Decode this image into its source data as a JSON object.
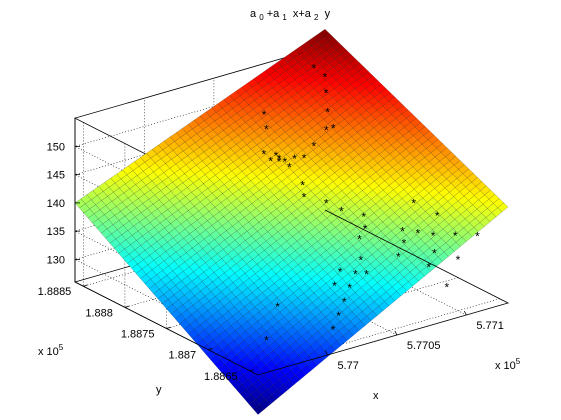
{
  "chart_data": {
    "type": "surface3d",
    "title_parts": [
      "a",
      "0",
      "+a",
      "1",
      " x+a",
      "2",
      " y"
    ],
    "xlabel": "x",
    "ylabel": "y",
    "x_exponent": {
      "base": "x 10",
      "power": "5"
    },
    "y_exponent": {
      "base": "x 10",
      "power": "5"
    },
    "xlim": [
      5.7695,
      5.7713
    ],
    "ylim": [
      1.8864,
      1.8886
    ],
    "zlim": [
      126,
      155
    ],
    "x_ticks": [
      5.77,
      5.7705,
      5.771
    ],
    "x_tick_labels": [
      "5.77",
      "5.7705",
      "5.771"
    ],
    "y_ticks": [
      1.8865,
      1.887,
      1.8875,
      1.888,
      1.8885
    ],
    "y_tick_labels": [
      "1.8865",
      "1.887",
      "1.8875",
      "1.888",
      "1.8885"
    ],
    "z_ticks": [
      130,
      135,
      140,
      145,
      150
    ],
    "z_tick_labels": [
      "130",
      "135",
      "140",
      "145",
      "150"
    ],
    "surface_corner_values": {
      "x_min_y_min": 119,
      "x_max_y_min": 143,
      "x_min_y_max": 140,
      "x_max_y_max": 158
    },
    "grid": true,
    "colormap": "jet",
    "marker": "*",
    "marker_color": "#000000",
    "scatter_points": [
      [
        5.77055,
        1.88808,
        152
      ],
      [
        5.77053,
        1.88802,
        150
      ],
      [
        5.7705,
        1.888,
        146
      ],
      [
        5.77052,
        1.88795,
        145
      ],
      [
        5.77055,
        1.8879,
        145
      ],
      [
        5.77058,
        1.88788,
        145
      ],
      [
        5.7706,
        1.88786,
        144
      ],
      [
        5.77054,
        1.88792,
        146
      ],
      [
        5.77058,
        1.88795,
        145
      ],
      [
        5.77065,
        1.88788,
        145
      ],
      [
        5.7707,
        1.88785,
        145
      ],
      [
        5.7708,
        1.8879,
        146
      ],
      [
        5.77095,
        1.888,
        147
      ],
      [
        5.77102,
        1.8881,
        149
      ],
      [
        5.77108,
        1.88822,
        151
      ],
      [
        5.77112,
        1.8883,
        153
      ],
      [
        5.7711,
        1.8884,
        154
      ],
      [
        5.771,
        1.888,
        147
      ],
      [
        5.7706,
        1.8877,
        142
      ],
      [
        5.77055,
        1.8876,
        141
      ],
      [
        5.77065,
        1.8875,
        140
      ],
      [
        5.7707,
        1.8874,
        139
      ],
      [
        5.7708,
        1.8873,
        138
      ],
      [
        5.77075,
        1.8872,
        137
      ],
      [
        5.77068,
        1.88715,
        136
      ],
      [
        5.7706,
        1.887,
        134
      ],
      [
        5.7705,
        1.8869,
        133
      ],
      [
        5.7704,
        1.8868,
        132
      ],
      [
        5.7703,
        1.8867,
        131
      ],
      [
        5.7702,
        1.8866,
        130
      ],
      [
        5.7701,
        1.8865,
        129
      ],
      [
        5.77035,
        1.8869,
        132
      ],
      [
        5.77045,
        1.887,
        133
      ],
      [
        5.77055,
        1.88685,
        133
      ],
      [
        5.77075,
        1.8868,
        135
      ],
      [
        5.77085,
        1.8869,
        136
      ],
      [
        5.7709,
        1.887,
        137
      ],
      [
        5.77095,
        1.8869,
        137
      ],
      [
        5.771,
        1.8868,
        137
      ],
      [
        5.7711,
        1.8867,
        137
      ],
      [
        5.7712,
        1.8866,
        137
      ],
      [
        5.77095,
        1.8867,
        135
      ],
      [
        5.77085,
        1.8866,
        134
      ],
      [
        5.7698,
        1.8868,
        127
      ],
      [
        5.77,
        1.887,
        130
      ],
      [
        5.7711,
        1.8872,
        139
      ],
      [
        5.77115,
        1.887,
        138
      ],
      [
        5.771,
        1.8865,
        135
      ],
      [
        5.7708,
        1.8863,
        133
      ]
    ]
  }
}
